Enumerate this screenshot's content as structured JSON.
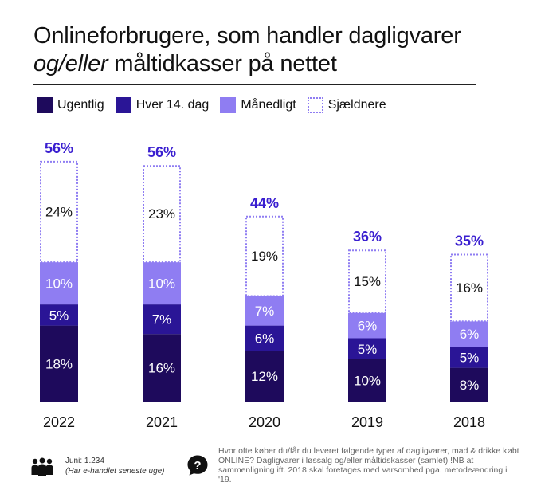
{
  "title_line1": "Onlineforbrugere, som handler dagligvarer",
  "title_line2_italic": "og/eller",
  "title_line2_rest": " måltidkasser på nettet",
  "colors": {
    "ugentlig": "#1e0a5c",
    "hver14": "#2a1596",
    "maanedligt": "#8f7df2",
    "sjaeldnere_border": "#8f7df2",
    "total_label": "#3a1fd0"
  },
  "legend": [
    {
      "label": "Ugentlig",
      "style": "solid",
      "color": "#1e0a5c"
    },
    {
      "label": "Hver 14. dag",
      "style": "solid",
      "color": "#2a1596"
    },
    {
      "label": "Månedligt",
      "style": "solid",
      "color": "#8f7df2"
    },
    {
      "label": "Sjældnere",
      "style": "dotted",
      "color": "#8f7df2"
    }
  ],
  "chart_data": {
    "type": "bar",
    "stacked": true,
    "categories": [
      "2022",
      "2021",
      "2020",
      "2019",
      "2018"
    ],
    "series": [
      {
        "name": "Ugentlig",
        "values": [
          18,
          16,
          12,
          10,
          8
        ],
        "labels": [
          "18%",
          "16%",
          "12%",
          "10%",
          "8%"
        ]
      },
      {
        "name": "Hver 14. dag",
        "values": [
          5,
          7,
          6,
          5,
          5
        ],
        "labels": [
          "5%",
          "7%",
          "6%",
          "5%",
          "5%"
        ]
      },
      {
        "name": "Månedligt",
        "values": [
          10,
          10,
          7,
          6,
          6
        ],
        "labels": [
          "10%",
          "10%",
          "7%",
          "6%",
          "6%"
        ]
      },
      {
        "name": "Sjældnere",
        "values": [
          24,
          23,
          19,
          15,
          16
        ],
        "labels": [
          "24%",
          "23%",
          "19%",
          "15%",
          "16%"
        ]
      }
    ],
    "totals": [
      56,
      56,
      44,
      36,
      35
    ],
    "total_labels": [
      "56%",
      "56%",
      "44%",
      "36%",
      "35%"
    ],
    "ylim": [
      0,
      60
    ],
    "grid": false
  },
  "footer": {
    "sample": "Juni: 1.234",
    "sample_note": "(Har e-handlet seneste uge)",
    "question": "Hvor ofte køber du/får du leveret følgende typer af dagligvarer, mad & drikke købt ONLINE? Dagligvarer i løssalg og/eller måltidskasser (samlet) !NB at sammenligning ift. 2018 skal foretages med varsomhed pga. metodeændring i '19."
  },
  "icons": {
    "people": "people-group-icon",
    "question": "question-bubble-icon"
  }
}
